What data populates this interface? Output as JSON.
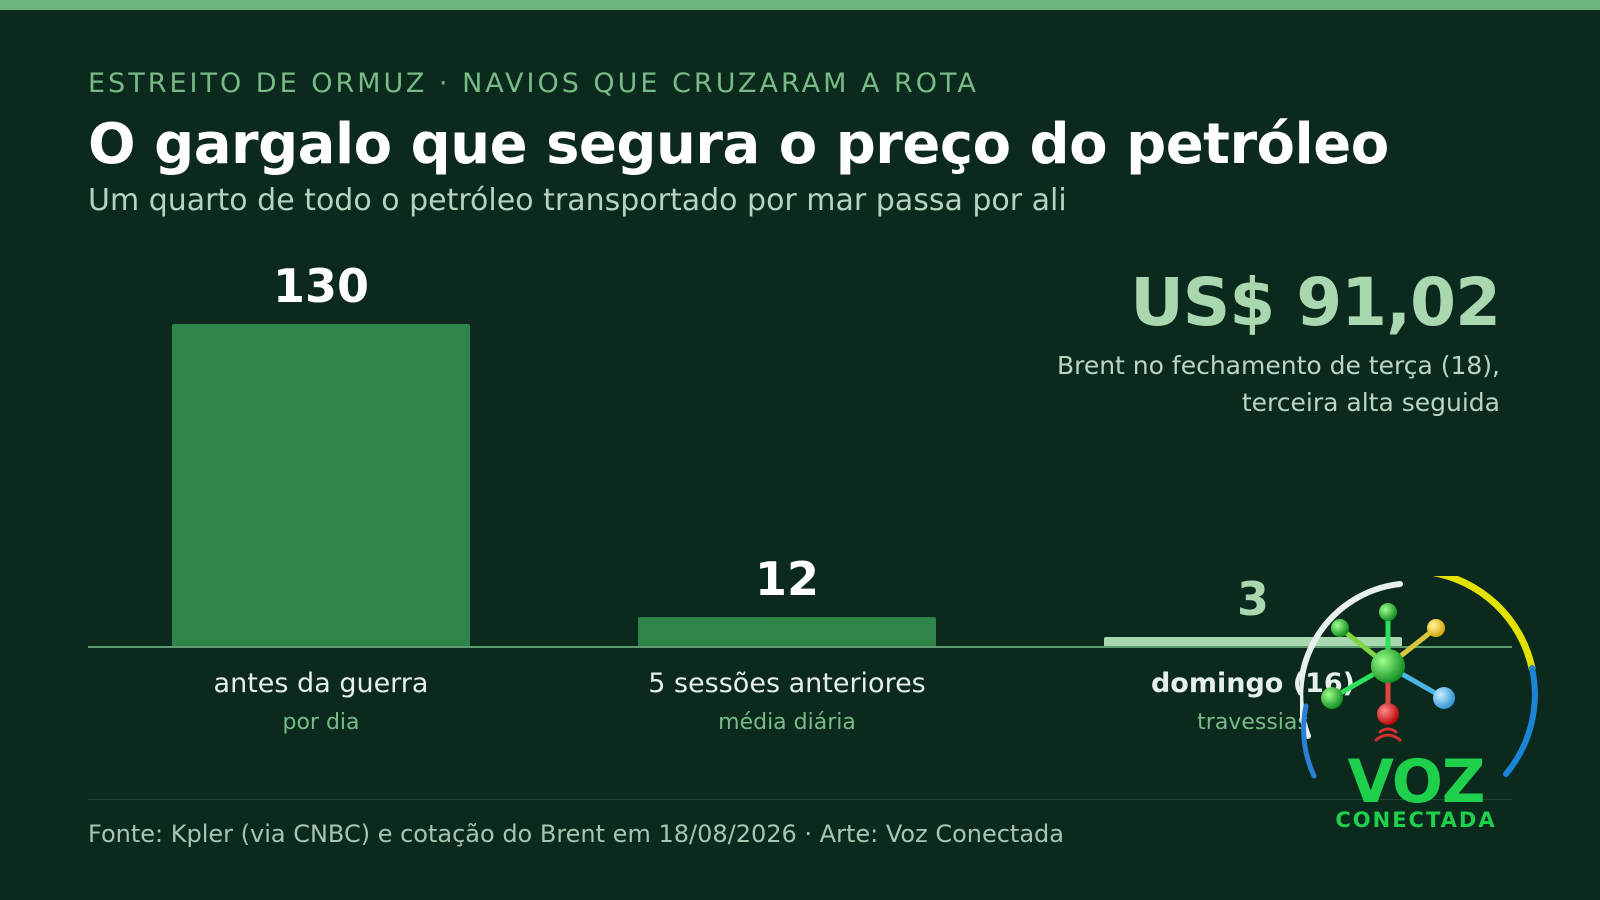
{
  "kicker": "ESTREITO DE ORMUZ · NAVIOS QUE CRUZARAM A ROTA",
  "title": "O gargalo que segura o preço do petróleo",
  "subtitle": "Um quarto de todo o petróleo transportado por mar passa por ali",
  "price": {
    "value": "US$ 91,02",
    "note_line1": "Brent no fechamento de terça (18),",
    "note_line2": "terceira alta seguida"
  },
  "footer": "Fonte: Kpler (via CNBC) e cotação do Brent em 18/08/2026 · Arte: Voz Conectada",
  "logo": {
    "wordmark": "VOZ",
    "subtitle": "CONECTADA"
  },
  "colors": {
    "background": "#0b291d",
    "bar": "#2e8549",
    "bar_highlight": "#a9d8b0",
    "accent": "#78bb86"
  },
  "chart_data": {
    "type": "bar",
    "categories": [
      "antes da guerra",
      "5 sessões anteriores",
      "domingo (16)"
    ],
    "sublabels": [
      "por dia",
      "média diária",
      "travessias"
    ],
    "values": [
      130,
      12,
      3
    ],
    "value_labels": [
      "130",
      "12",
      "3"
    ],
    "highlight_index": 2,
    "title": "",
    "xlabel": "",
    "ylabel": "",
    "ylim": [
      0,
      130
    ],
    "grid": false
  }
}
